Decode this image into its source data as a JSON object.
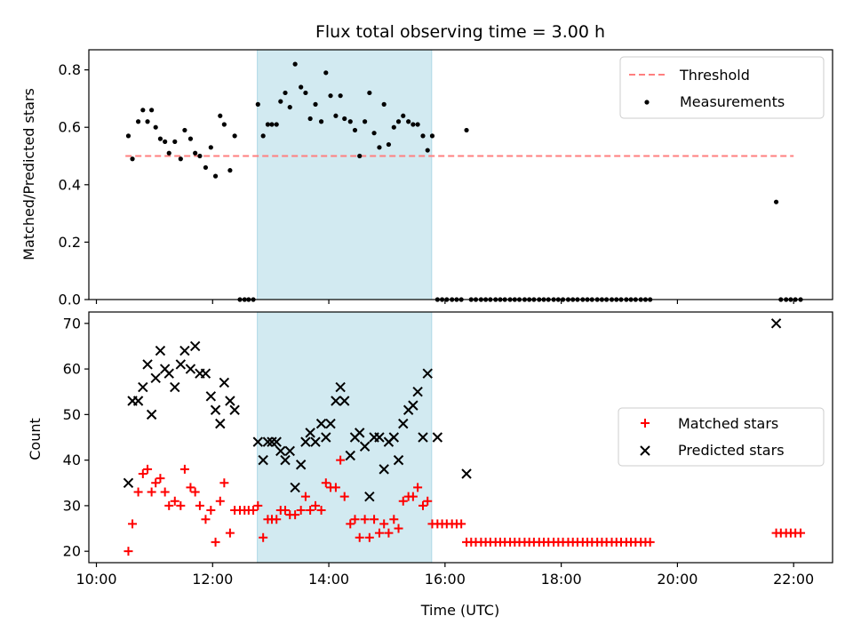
{
  "chart_data": [
    {
      "type": "scatter",
      "title": "Flux total observing time = 3.00 h",
      "xlabel": "",
      "ylabel": "Matched/Predicted stars",
      "xlim": [
        9.87,
        22.67
      ],
      "ylim": [
        0.0,
        0.87
      ],
      "yticks": [
        0.0,
        0.2,
        0.4,
        0.6,
        0.8
      ],
      "ytick_labels": [
        "0.0",
        "0.2",
        "0.4",
        "0.6",
        "0.8"
      ],
      "highlight_span": [
        12.77,
        15.77
      ],
      "highlight_color": "#add8e6",
      "legend_position": "upper right",
      "threshold": {
        "name": "Threshold",
        "value": 0.5,
        "x_range": [
          10.5,
          22.0
        ],
        "color": "#ff7f7f",
        "style": "dashed"
      },
      "series": [
        {
          "name": "Measurements",
          "color": "#000000",
          "marker": "dot",
          "x": [
            10.55,
            10.62,
            10.72,
            10.8,
            10.88,
            10.95,
            11.02,
            11.1,
            11.18,
            11.25,
            11.35,
            11.45,
            11.52,
            11.62,
            11.7,
            11.78,
            11.88,
            11.97,
            12.05,
            12.13,
            12.2,
            12.3,
            12.38,
            12.47,
            12.55,
            12.62,
            12.7,
            12.78,
            12.87,
            12.95,
            13.02,
            13.1,
            13.17,
            13.25,
            13.33,
            13.42,
            13.52,
            13.6,
            13.68,
            13.77,
            13.87,
            13.95,
            14.03,
            14.12,
            14.2,
            14.27,
            14.37,
            14.45,
            14.53,
            14.62,
            14.7,
            14.78,
            14.87,
            14.95,
            15.03,
            15.12,
            15.2,
            15.28,
            15.37,
            15.45,
            15.53,
            15.62,
            15.7,
            15.78,
            15.87,
            15.95,
            16.03,
            16.12,
            16.2,
            16.28,
            16.37,
            16.45,
            16.53,
            16.62,
            16.7,
            16.78,
            16.87,
            16.95,
            17.03,
            17.12,
            17.2,
            17.28,
            17.37,
            17.45,
            17.53,
            17.62,
            17.7,
            17.78,
            17.87,
            17.95,
            18.03,
            18.12,
            18.2,
            18.28,
            18.37,
            18.45,
            18.53,
            18.62,
            18.7,
            18.78,
            18.87,
            18.95,
            19.03,
            19.12,
            19.2,
            19.28,
            19.37,
            19.45,
            19.53,
            21.7,
            21.78,
            21.87,
            21.95,
            22.03,
            22.12
          ],
          "y": [
            0.57,
            0.49,
            0.62,
            0.66,
            0.62,
            0.66,
            0.6,
            0.56,
            0.55,
            0.51,
            0.55,
            0.49,
            0.59,
            0.56,
            0.51,
            0.5,
            0.46,
            0.53,
            0.43,
            0.64,
            0.61,
            0.45,
            0.57,
            0.0,
            0.0,
            0.0,
            0.0,
            0.68,
            0.57,
            0.61,
            0.61,
            0.61,
            0.69,
            0.72,
            0.67,
            0.82,
            0.74,
            0.72,
            0.63,
            0.68,
            0.62,
            0.79,
            0.71,
            0.64,
            0.71,
            0.63,
            0.62,
            0.59,
            0.5,
            0.62,
            0.72,
            0.58,
            0.53,
            0.68,
            0.54,
            0.6,
            0.62,
            0.64,
            0.62,
            0.61,
            0.61,
            0.57,
            0.52,
            0.57,
            0.0,
            0.0,
            0.0,
            0.0,
            0.0,
            0.0,
            0.59,
            0.0,
            0.0,
            0.0,
            0.0,
            0.0,
            0.0,
            0.0,
            0.0,
            0.0,
            0.0,
            0.0,
            0.0,
            0.0,
            0.0,
            0.0,
            0.0,
            0.0,
            0.0,
            0.0,
            0.0,
            0.0,
            0.0,
            0.0,
            0.0,
            0.0,
            0.0,
            0.0,
            0.0,
            0.0,
            0.0,
            0.0,
            0.0,
            0.0,
            0.0,
            0.0,
            0.0,
            0.0,
            0.0,
            0.34,
            0.0,
            0.0,
            0.0,
            0.0,
            0.0
          ]
        }
      ]
    },
    {
      "type": "scatter",
      "xlabel": "Time (UTC)",
      "ylabel": "Count",
      "xlim": [
        9.87,
        22.67
      ],
      "ylim": [
        17.5,
        72.5
      ],
      "yticks": [
        20,
        30,
        40,
        50,
        60,
        70
      ],
      "ytick_labels": [
        "20",
        "30",
        "40",
        "50",
        "60",
        "70"
      ],
      "xticks": [
        10,
        12,
        14,
        16,
        18,
        20,
        22
      ],
      "xtick_labels": [
        "10:00",
        "12:00",
        "14:00",
        "16:00",
        "18:00",
        "20:00",
        "22:00"
      ],
      "highlight_span": [
        12.77,
        15.77
      ],
      "highlight_color": "#add8e6",
      "legend_position": "center right",
      "series": [
        {
          "name": "Matched stars",
          "color": "#ff0000",
          "marker": "plus",
          "x": [
            10.55,
            10.62,
            10.72,
            10.8,
            10.88,
            10.95,
            11.02,
            11.1,
            11.18,
            11.25,
            11.35,
            11.45,
            11.52,
            11.62,
            11.7,
            11.78,
            11.88,
            11.97,
            12.05,
            12.13,
            12.2,
            12.3,
            12.38,
            12.47,
            12.55,
            12.62,
            12.7,
            12.78,
            12.87,
            12.95,
            13.02,
            13.1,
            13.17,
            13.25,
            13.33,
            13.42,
            13.52,
            13.6,
            13.68,
            13.77,
            13.87,
            13.95,
            14.03,
            14.12,
            14.2,
            14.27,
            14.37,
            14.45,
            14.53,
            14.62,
            14.7,
            14.78,
            14.87,
            14.95,
            15.03,
            15.12,
            15.2,
            15.28,
            15.37,
            15.45,
            15.53,
            15.62,
            15.7,
            15.78,
            15.87,
            15.95,
            16.03,
            16.12,
            16.2,
            16.28,
            16.37,
            16.45,
            16.53,
            16.62,
            16.7,
            16.78,
            16.87,
            16.95,
            17.03,
            17.12,
            17.2,
            17.28,
            17.37,
            17.45,
            17.53,
            17.62,
            17.7,
            17.78,
            17.87,
            17.95,
            18.03,
            18.12,
            18.2,
            18.28,
            18.37,
            18.45,
            18.53,
            18.62,
            18.7,
            18.78,
            18.87,
            18.95,
            19.03,
            19.12,
            19.2,
            19.28,
            19.37,
            19.45,
            19.53,
            21.7,
            21.78,
            21.87,
            21.95,
            22.03,
            22.12
          ],
          "y": [
            20,
            26,
            33,
            37,
            38,
            33,
            35,
            36,
            33,
            30,
            31,
            30,
            38,
            34,
            33,
            30,
            27,
            29,
            22,
            31,
            35,
            24,
            29,
            29,
            29,
            29,
            29,
            30,
            23,
            27,
            27,
            27,
            29,
            29,
            28,
            28,
            29,
            32,
            29,
            30,
            29,
            35,
            34,
            34,
            40,
            32,
            26,
            27,
            23,
            27,
            23,
            27,
            24,
            26,
            24,
            27,
            25,
            31,
            32,
            32,
            34,
            30,
            31,
            26,
            26,
            26,
            26,
            26,
            26,
            26,
            22,
            22,
            22,
            22,
            22,
            22,
            22,
            22,
            22,
            22,
            22,
            22,
            22,
            22,
            22,
            22,
            22,
            22,
            22,
            22,
            22,
            22,
            22,
            22,
            22,
            22,
            22,
            22,
            22,
            22,
            22,
            22,
            22,
            22,
            22,
            22,
            22,
            22,
            22,
            24,
            24,
            24,
            24,
            24,
            24
          ]
        },
        {
          "name": "Predicted stars",
          "color": "#000000",
          "marker": "x",
          "x": [
            10.55,
            10.62,
            10.72,
            10.8,
            10.88,
            10.95,
            11.02,
            11.1,
            11.18,
            11.25,
            11.35,
            11.45,
            11.52,
            11.62,
            11.7,
            11.78,
            11.88,
            11.97,
            12.05,
            12.13,
            12.2,
            12.3,
            12.38,
            12.78,
            12.87,
            12.95,
            13.02,
            13.1,
            13.17,
            13.25,
            13.33,
            13.42,
            13.52,
            13.6,
            13.68,
            13.77,
            13.87,
            13.95,
            14.03,
            14.12,
            14.2,
            14.27,
            14.37,
            14.45,
            14.53,
            14.62,
            14.7,
            14.78,
            14.87,
            14.95,
            15.03,
            15.12,
            15.2,
            15.28,
            15.37,
            15.45,
            15.53,
            15.62,
            15.7,
            15.87,
            16.37,
            21.7
          ],
          "y": [
            35,
            53,
            53,
            56,
            61,
            50,
            58,
            64,
            60,
            59,
            56,
            61,
            64,
            60,
            65,
            59,
            59,
            54,
            51,
            48,
            57,
            53,
            51,
            44,
            40,
            44,
            44,
            44,
            42,
            40,
            42,
            34,
            39,
            44,
            46,
            44,
            48,
            45,
            48,
            53,
            56,
            53,
            41,
            45,
            46,
            43,
            32,
            45,
            45,
            38,
            44,
            45,
            40,
            48,
            51,
            52,
            55,
            45,
            59,
            45,
            37,
            70
          ]
        }
      ]
    }
  ]
}
